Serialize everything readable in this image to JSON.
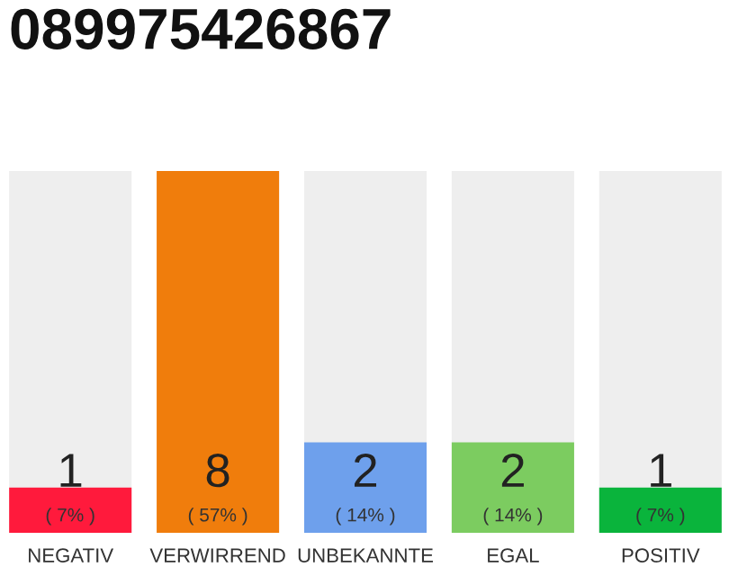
{
  "chart_data": {
    "type": "bar",
    "title": "089975426867",
    "categories": [
      "NEGATIV",
      "VERWIRREND",
      "UNBEKANNTE",
      "EGAL",
      "POSITIV"
    ],
    "values": [
      1,
      8,
      2,
      2,
      1
    ],
    "colors": [
      "#ff1a3c",
      "#f07d0c",
      "#6ea0ec",
      "#7ccc60",
      "#0ab43c"
    ],
    "data_labels": true,
    "annotations": [
      "( 7% )",
      "( 57% )",
      "( 14% )",
      "( 14% )",
      "( 7% )"
    ],
    "tick_labels": "x",
    "grid": false,
    "legend": false
  }
}
